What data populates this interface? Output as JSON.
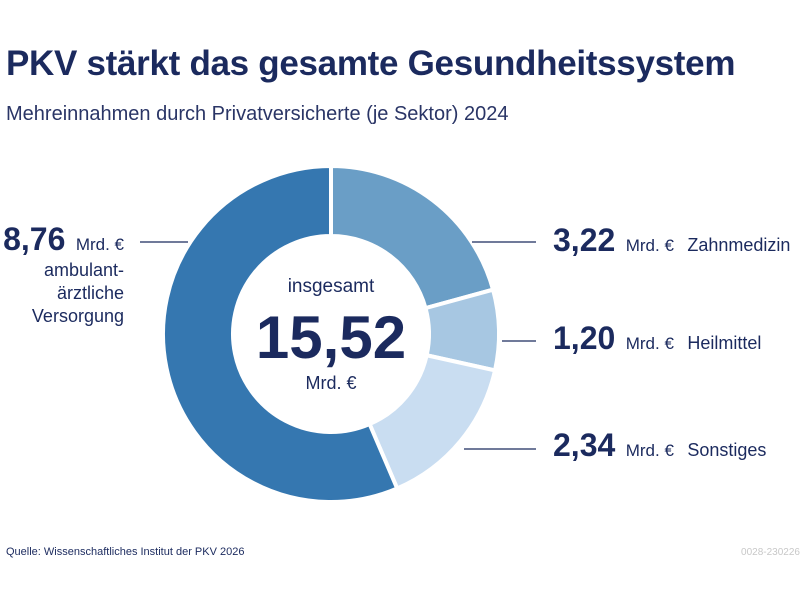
{
  "header": {
    "title": "PKV stärkt das gesamte Gesundheitssystem",
    "subtitle": "Mehreinnahmen durch Privatversicherte (je Sektor) 2024"
  },
  "chart_data": {
    "type": "pie",
    "title": "PKV stärkt das gesamte Gesundheitssystem",
    "subtitle": "Mehreinnahmen durch Privatversicherte (je Sektor) 2024",
    "unit": "Mrd. €",
    "total": {
      "label": "insgesamt",
      "value_text": "15,52",
      "value": 15.52,
      "unit": "Mrd. €"
    },
    "slices": [
      {
        "label": "Zahnmedizin",
        "value": 3.22,
        "value_text": "3,22",
        "color": "#6a9ec6"
      },
      {
        "label": "Heilmittel",
        "value": 1.2,
        "value_text": "1,20",
        "color": "#a7c7e2"
      },
      {
        "label": "Sonstiges",
        "value": 2.34,
        "value_text": "2,34",
        "color": "#c9ddf1"
      },
      {
        "label_lines": [
          "ambulant-",
          "ärztliche",
          "Versorgung"
        ],
        "value": 8.76,
        "value_text": "8,76",
        "color": "#3577b0"
      }
    ]
  },
  "footer": {
    "source": "Quelle: Wissenschaftliches Institut der PKV 2026",
    "code": "0028-230226"
  }
}
